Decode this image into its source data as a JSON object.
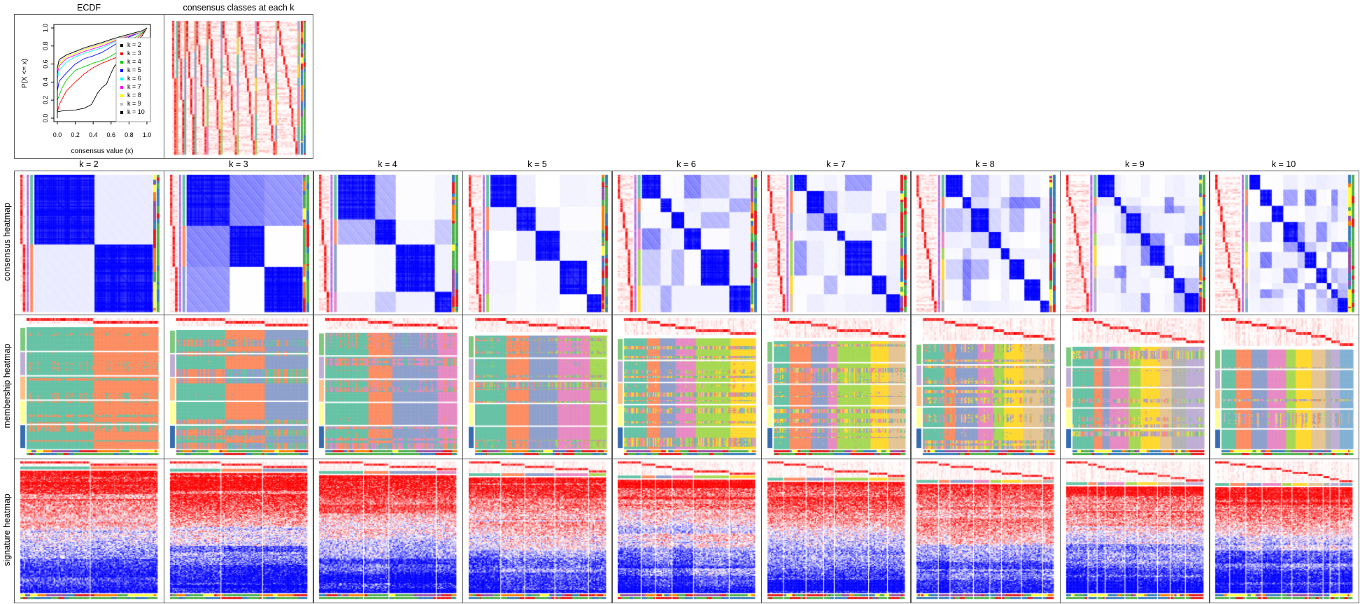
{
  "ecdf": {
    "title": "ECDF",
    "xlabel": "consensus value (x)",
    "ylabel": "P(X <= x)",
    "xticks": [
      "0.0",
      "0.2",
      "0.4",
      "0.6",
      "0.8",
      "1.0"
    ],
    "yticks": [
      "0.0",
      "0.2",
      "0.4",
      "0.6",
      "0.8",
      "1.0"
    ]
  },
  "classes_panel": {
    "title": "consensus classes at each k"
  },
  "row_labels": {
    "consensus": "consensus heatmap",
    "membership": "membership heatmap",
    "signature": "signature heatmap"
  },
  "panels": [
    {
      "title": "k = 2",
      "k": 2
    },
    {
      "title": "k = 3",
      "k": 3
    },
    {
      "title": "k = 4",
      "k": 4
    },
    {
      "title": "k = 5",
      "k": 5
    },
    {
      "title": "k = 6",
      "k": 6
    },
    {
      "title": "k = 7",
      "k": 7
    },
    {
      "title": "k = 8",
      "k": 8
    },
    {
      "title": "k = 9",
      "k": 9
    },
    {
      "title": "k = 10",
      "k": 10
    }
  ],
  "colors": {
    "class_palette": [
      "#66C2A5",
      "#FC8D62",
      "#8DA0CB",
      "#E78AC3",
      "#A6D854",
      "#FFD92F",
      "#E5C494",
      "#B3B3B3",
      "#BEAED4",
      "#80B1D3"
    ],
    "row_group_palette": [
      "#7FC97F",
      "#BEAED4",
      "#FDC086",
      "#FFFF99",
      "#386CB0"
    ],
    "annotation_palette": [
      "#E41A1C",
      "#377EB8",
      "#4DAF4A",
      "#984EA3",
      "#FF7F00",
      "#FFFF33"
    ],
    "consensus_high": "#0000FF",
    "probability_high": "#FF0000",
    "signature_high": "#FF0000",
    "signature_low": "#0000FF"
  },
  "chart_data": {
    "type": "line",
    "title": "ECDF",
    "xlabel": "consensus value (x)",
    "ylabel": "P(X <= x)",
    "xlim": [
      0,
      1
    ],
    "ylim": [
      0,
      1
    ],
    "legend": "right",
    "series": [
      {
        "name": "k = 2",
        "color": "#000000",
        "points": [
          [
            0,
            0
          ],
          [
            0,
            0.07
          ],
          [
            0.05,
            0.08
          ],
          [
            0.2,
            0.09
          ],
          [
            0.3,
            0.11
          ],
          [
            0.38,
            0.15
          ],
          [
            0.45,
            0.28
          ],
          [
            0.5,
            0.34
          ],
          [
            0.55,
            0.38
          ],
          [
            0.6,
            0.5
          ],
          [
            0.64,
            0.58
          ],
          [
            0.8,
            0.75
          ],
          [
            0.95,
            0.92
          ],
          [
            1,
            1
          ]
        ]
      },
      {
        "name": "k = 3",
        "color": "#FF0000",
        "points": [
          [
            0,
            0
          ],
          [
            0,
            0.06
          ],
          [
            0.02,
            0.15
          ],
          [
            0.1,
            0.3
          ],
          [
            0.2,
            0.4
          ],
          [
            0.3,
            0.49
          ],
          [
            0.4,
            0.56
          ],
          [
            0.5,
            0.61
          ],
          [
            0.6,
            0.65
          ],
          [
            0.65,
            0.67
          ],
          [
            0.8,
            0.8
          ],
          [
            0.95,
            0.94
          ],
          [
            1,
            1
          ]
        ]
      },
      {
        "name": "k = 4",
        "color": "#00CD00",
        "points": [
          [
            0,
            0
          ],
          [
            0,
            0.2
          ],
          [
            0.05,
            0.33
          ],
          [
            0.1,
            0.42
          ],
          [
            0.2,
            0.53
          ],
          [
            0.3,
            0.57
          ],
          [
            0.4,
            0.61
          ],
          [
            0.5,
            0.64
          ],
          [
            0.6,
            0.69
          ],
          [
            0.65,
            0.72
          ],
          [
            0.8,
            0.85
          ],
          [
            0.95,
            0.95
          ],
          [
            1,
            1
          ]
        ]
      },
      {
        "name": "k = 5",
        "color": "#0000FF",
        "points": [
          [
            0,
            0
          ],
          [
            0,
            0.3
          ],
          [
            0.02,
            0.41
          ],
          [
            0.1,
            0.5
          ],
          [
            0.2,
            0.6
          ],
          [
            0.3,
            0.66
          ],
          [
            0.4,
            0.69
          ],
          [
            0.5,
            0.73
          ],
          [
            0.65,
            0.82
          ],
          [
            0.8,
            0.9
          ],
          [
            0.95,
            0.96
          ],
          [
            1,
            1
          ]
        ]
      },
      {
        "name": "k = 6",
        "color": "#00FFFF",
        "points": [
          [
            0,
            0
          ],
          [
            0,
            0.43
          ],
          [
            0.02,
            0.53
          ],
          [
            0.1,
            0.62
          ],
          [
            0.2,
            0.68
          ],
          [
            0.3,
            0.72
          ],
          [
            0.5,
            0.78
          ],
          [
            0.65,
            0.85
          ],
          [
            0.8,
            0.91
          ],
          [
            0.95,
            0.96
          ],
          [
            1,
            1
          ]
        ]
      },
      {
        "name": "k = 7",
        "color": "#FF00FF",
        "points": [
          [
            0,
            0
          ],
          [
            0,
            0.49
          ],
          [
            0.02,
            0.58
          ],
          [
            0.1,
            0.66
          ],
          [
            0.3,
            0.74
          ],
          [
            0.5,
            0.8
          ],
          [
            0.65,
            0.86
          ],
          [
            0.8,
            0.91
          ],
          [
            0.95,
            0.96
          ],
          [
            1,
            1
          ]
        ]
      },
      {
        "name": "k = 8",
        "color": "#FFFF00",
        "points": [
          [
            0,
            0
          ],
          [
            0,
            0.53
          ],
          [
            0.02,
            0.6
          ],
          [
            0.1,
            0.68
          ],
          [
            0.3,
            0.76
          ],
          [
            0.5,
            0.82
          ],
          [
            0.65,
            0.87
          ],
          [
            0.8,
            0.92
          ],
          [
            0.95,
            0.96
          ],
          [
            1,
            1
          ]
        ]
      },
      {
        "name": "k = 9",
        "color": "#BEBEBE",
        "points": [
          [
            0,
            0
          ],
          [
            0,
            0.55
          ],
          [
            0.02,
            0.62
          ],
          [
            0.1,
            0.7
          ],
          [
            0.3,
            0.77
          ],
          [
            0.5,
            0.83
          ],
          [
            0.65,
            0.88
          ],
          [
            0.8,
            0.92
          ],
          [
            0.95,
            0.96
          ],
          [
            1,
            1
          ]
        ]
      },
      {
        "name": "k = 10",
        "color": "#000000",
        "points": [
          [
            0,
            0
          ],
          [
            0,
            0.56
          ],
          [
            0.02,
            0.65
          ],
          [
            0.1,
            0.7
          ],
          [
            0.3,
            0.78
          ],
          [
            0.5,
            0.84
          ],
          [
            0.65,
            0.89
          ],
          [
            0.8,
            0.93
          ],
          [
            0.95,
            0.97
          ],
          [
            1,
            1
          ]
        ]
      }
    ]
  }
}
